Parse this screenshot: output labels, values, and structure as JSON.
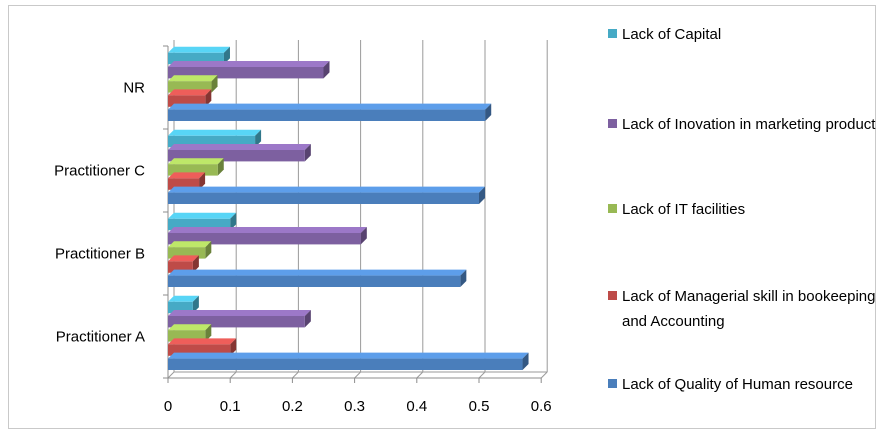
{
  "chart_data": {
    "type": "bar",
    "orientation": "horizontal",
    "categories": [
      "Practitioner A",
      "Practitioner B",
      "Practitioner C",
      "NR"
    ],
    "series": [
      {
        "name": "Lack of Quality of Human resource",
        "color": "#4a7ebb",
        "values": [
          0.57,
          0.47,
          0.5,
          0.51
        ]
      },
      {
        "name": "Lack of Managerial skill in bookeeping and Accounting",
        "color": "#be4b48",
        "values": [
          0.1,
          0.04,
          0.05,
          0.06
        ]
      },
      {
        "name": "Lack of IT facilities",
        "color": "#98b954",
        "values": [
          0.06,
          0.06,
          0.08,
          0.07
        ]
      },
      {
        "name": "Lack of Inovation in marketing product",
        "color": "#7d60a0",
        "values": [
          0.22,
          0.31,
          0.22,
          0.25
        ]
      },
      {
        "name": "Lack of Capital",
        "color": "#46aac5",
        "values": [
          0.04,
          0.1,
          0.14,
          0.09
        ]
      }
    ],
    "xlim": [
      0,
      0.6
    ],
    "x_ticks": [
      "0",
      "0.1",
      "0.2",
      "0.3",
      "0.4",
      "0.5",
      "0.6"
    ],
    "gridlines": true,
    "legend_position": "right",
    "legend_order": [
      "Lack of Capital",
      "Lack of Inovation in marketing product",
      "Lack of IT facilities",
      "Lack of Managerial skill in bookeeping and Accounting",
      "Lack of Quality of Human resource"
    ],
    "title": "",
    "xlabel": "",
    "ylabel": ""
  }
}
